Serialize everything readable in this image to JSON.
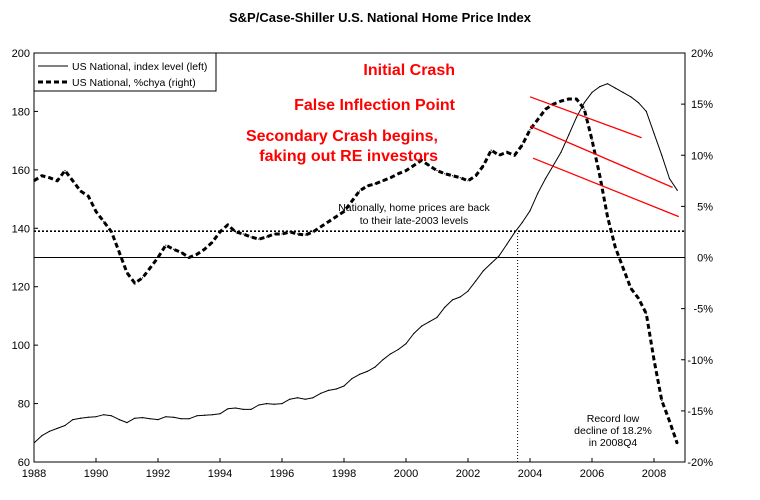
{
  "chart_data": {
    "type": "line",
    "title": "S&P/Case-Shiller U.S. National Home Price Index",
    "x": {
      "range": [
        1988,
        2009
      ],
      "ticks": [
        "1988",
        "1990",
        "1992",
        "1994",
        "1996",
        "1998",
        "2000",
        "2002",
        "2004",
        "2006",
        "2008"
      ]
    },
    "y_left": {
      "range": [
        60,
        200
      ],
      "ticks": [
        "60",
        "80",
        "100",
        "120",
        "140",
        "160",
        "180",
        "200"
      ]
    },
    "y_right": {
      "range": [
        -20,
        20
      ],
      "ticks": [
        "-20%",
        "-15%",
        "-10%",
        "-5%",
        "0%",
        "5%",
        "10%",
        "15%",
        "20%"
      ]
    },
    "grid": false,
    "legend_position": "top-left",
    "series": [
      {
        "name": "US National, index level (left)",
        "axis": "left",
        "style": "solid",
        "points": [
          [
            1988.0,
            66.5
          ],
          [
            1988.25,
            69.0
          ],
          [
            1988.5,
            70.5
          ],
          [
            1988.75,
            71.5
          ],
          [
            1989.0,
            72.5
          ],
          [
            1989.25,
            74.5
          ],
          [
            1989.5,
            75.0
          ],
          [
            1989.75,
            75.3
          ],
          [
            1990.0,
            75.5
          ],
          [
            1990.25,
            76.2
          ],
          [
            1990.5,
            75.8
          ],
          [
            1990.75,
            74.5
          ],
          [
            1991.0,
            73.5
          ],
          [
            1991.25,
            75.0
          ],
          [
            1991.5,
            75.2
          ],
          [
            1991.75,
            74.8
          ],
          [
            1992.0,
            74.5
          ],
          [
            1992.25,
            75.5
          ],
          [
            1992.5,
            75.3
          ],
          [
            1992.75,
            74.8
          ],
          [
            1993.0,
            74.8
          ],
          [
            1993.25,
            75.8
          ],
          [
            1993.5,
            76.0
          ],
          [
            1993.75,
            76.2
          ],
          [
            1994.0,
            76.5
          ],
          [
            1994.25,
            78.2
          ],
          [
            1994.5,
            78.5
          ],
          [
            1994.75,
            78.0
          ],
          [
            1995.0,
            78.0
          ],
          [
            1995.25,
            79.5
          ],
          [
            1995.5,
            80.0
          ],
          [
            1995.75,
            79.8
          ],
          [
            1996.0,
            80.0
          ],
          [
            1996.25,
            81.5
          ],
          [
            1996.5,
            82.0
          ],
          [
            1996.75,
            81.5
          ],
          [
            1997.0,
            82.0
          ],
          [
            1997.25,
            83.5
          ],
          [
            1997.5,
            84.5
          ],
          [
            1997.75,
            85.0
          ],
          [
            1998.0,
            86.0
          ],
          [
            1998.25,
            88.5
          ],
          [
            1998.5,
            90.0
          ],
          [
            1998.75,
            91.0
          ],
          [
            1999.0,
            92.5
          ],
          [
            1999.25,
            95.0
          ],
          [
            1999.5,
            97.0
          ],
          [
            1999.75,
            98.5
          ],
          [
            2000.0,
            100.5
          ],
          [
            2000.25,
            104.0
          ],
          [
            2000.5,
            106.5
          ],
          [
            2000.75,
            108.0
          ],
          [
            2001.0,
            109.5
          ],
          [
            2001.25,
            113.0
          ],
          [
            2001.5,
            115.5
          ],
          [
            2001.75,
            116.5
          ],
          [
            2002.0,
            118.5
          ],
          [
            2002.25,
            122.0
          ],
          [
            2002.5,
            125.5
          ],
          [
            2002.75,
            128.0
          ],
          [
            2003.0,
            130.5
          ],
          [
            2003.25,
            134.5
          ],
          [
            2003.5,
            138.5
          ],
          [
            2003.75,
            142.0
          ],
          [
            2004.0,
            146.0
          ],
          [
            2004.25,
            152.0
          ],
          [
            2004.5,
            157.0
          ],
          [
            2004.75,
            161.5
          ],
          [
            2005.0,
            166.0
          ],
          [
            2005.25,
            172.0
          ],
          [
            2005.5,
            178.0
          ],
          [
            2005.75,
            183.0
          ],
          [
            2006.0,
            186.5
          ],
          [
            2006.25,
            188.5
          ],
          [
            2006.5,
            189.5
          ],
          [
            2006.75,
            188.0
          ],
          [
            2007.0,
            186.5
          ],
          [
            2007.25,
            185.0
          ],
          [
            2007.5,
            183.0
          ],
          [
            2007.75,
            180.0
          ],
          [
            2008.0,
            172.5
          ],
          [
            2008.25,
            165.0
          ],
          [
            2008.5,
            157.0
          ],
          [
            2008.75,
            153.0
          ]
        ]
      },
      {
        "name": "US National, %chya (right)",
        "axis": "right",
        "style": "dashed",
        "points": [
          [
            1988.0,
            7.5
          ],
          [
            1988.25,
            8.0
          ],
          [
            1988.5,
            7.8
          ],
          [
            1988.75,
            7.5
          ],
          [
            1989.0,
            8.5
          ],
          [
            1989.25,
            7.5
          ],
          [
            1989.5,
            6.5
          ],
          [
            1989.75,
            6.0
          ],
          [
            1990.0,
            4.5
          ],
          [
            1990.25,
            3.5
          ],
          [
            1990.5,
            2.5
          ],
          [
            1990.75,
            0.5
          ],
          [
            1991.0,
            -1.5
          ],
          [
            1991.25,
            -2.5
          ],
          [
            1991.5,
            -2.0
          ],
          [
            1991.75,
            -1.0
          ],
          [
            1992.0,
            0.0
          ],
          [
            1992.25,
            1.2
          ],
          [
            1992.5,
            0.8
          ],
          [
            1992.75,
            0.5
          ],
          [
            1993.0,
            0.0
          ],
          [
            1993.25,
            0.3
          ],
          [
            1993.5,
            0.8
          ],
          [
            1993.75,
            1.5
          ],
          [
            1994.0,
            2.5
          ],
          [
            1994.25,
            3.2
          ],
          [
            1994.5,
            2.5
          ],
          [
            1994.75,
            2.3
          ],
          [
            1995.0,
            2.0
          ],
          [
            1995.25,
            1.8
          ],
          [
            1995.5,
            2.0
          ],
          [
            1995.75,
            2.3
          ],
          [
            1996.0,
            2.3
          ],
          [
            1996.25,
            2.5
          ],
          [
            1996.5,
            2.3
          ],
          [
            1996.75,
            2.2
          ],
          [
            1997.0,
            2.5
          ],
          [
            1997.25,
            3.0
          ],
          [
            1997.5,
            3.5
          ],
          [
            1997.75,
            4.0
          ],
          [
            1998.0,
            4.5
          ],
          [
            1998.25,
            5.5
          ],
          [
            1998.5,
            6.5
          ],
          [
            1998.75,
            7.0
          ],
          [
            1999.0,
            7.2
          ],
          [
            1999.25,
            7.5
          ],
          [
            1999.5,
            7.8
          ],
          [
            1999.75,
            8.2
          ],
          [
            2000.0,
            8.5
          ],
          [
            2000.25,
            9.0
          ],
          [
            2000.5,
            9.5
          ],
          [
            2000.75,
            9.0
          ],
          [
            2001.0,
            8.5
          ],
          [
            2001.25,
            8.2
          ],
          [
            2001.5,
            8.0
          ],
          [
            2001.75,
            7.8
          ],
          [
            2002.0,
            7.5
          ],
          [
            2002.25,
            8.0
          ],
          [
            2002.5,
            9.0
          ],
          [
            2002.75,
            10.5
          ],
          [
            2003.0,
            10.0
          ],
          [
            2003.25,
            10.3
          ],
          [
            2003.5,
            10.0
          ],
          [
            2003.75,
            11.0
          ],
          [
            2004.0,
            12.5
          ],
          [
            2004.25,
            13.5
          ],
          [
            2004.5,
            14.5
          ],
          [
            2004.75,
            15.0
          ],
          [
            2005.0,
            15.3
          ],
          [
            2005.25,
            15.5
          ],
          [
            2005.5,
            15.5
          ],
          [
            2005.75,
            14.5
          ],
          [
            2006.0,
            11.5
          ],
          [
            2006.25,
            8.0
          ],
          [
            2006.5,
            4.0
          ],
          [
            2006.75,
            1.0
          ],
          [
            2007.0,
            -1.0
          ],
          [
            2007.25,
            -3.0
          ],
          [
            2007.5,
            -4.0
          ],
          [
            2007.75,
            -5.5
          ],
          [
            2008.0,
            -10.0
          ],
          [
            2008.25,
            -14.0
          ],
          [
            2008.5,
            -16.0
          ],
          [
            2008.75,
            -18.2
          ]
        ]
      }
    ],
    "reference_lines": [
      {
        "type": "horizontal",
        "axis": "left",
        "value": 139,
        "style": "dotted"
      },
      {
        "type": "horizontal",
        "axis": "right",
        "value": 0,
        "style": "solid"
      },
      {
        "type": "vertical",
        "x": 2003.6,
        "from_left_value": 60,
        "to_left_value": 139,
        "style": "dotted"
      }
    ],
    "annotations": [
      {
        "id": "initial-crash",
        "text": "Initial Crash",
        "color": "#ff0000",
        "arrow_from": [
          2004.0,
          185
        ],
        "arrow_to": [
          2007.6,
          171
        ]
      },
      {
        "id": "false-inflection",
        "text": "False Inflection Point",
        "color": "#ff0000",
        "arrow_from": [
          2004.0,
          175
        ],
        "arrow_to": [
          2008.6,
          154
        ]
      },
      {
        "id": "secondary-crash",
        "text": [
          "Secondary Crash begins,",
          "faking out RE investors"
        ],
        "color": "#ff0000",
        "arrow_from": [
          2004.1,
          164
        ],
        "arrow_to": [
          2008.8,
          144
        ]
      },
      {
        "id": "nationally",
        "text": [
          "Nationally, home prices are back",
          "to their late-2003 levels"
        ]
      },
      {
        "id": "record-low",
        "text": [
          "Record low",
          "decline of 18.2%",
          "in 2008Q4"
        ]
      }
    ]
  }
}
